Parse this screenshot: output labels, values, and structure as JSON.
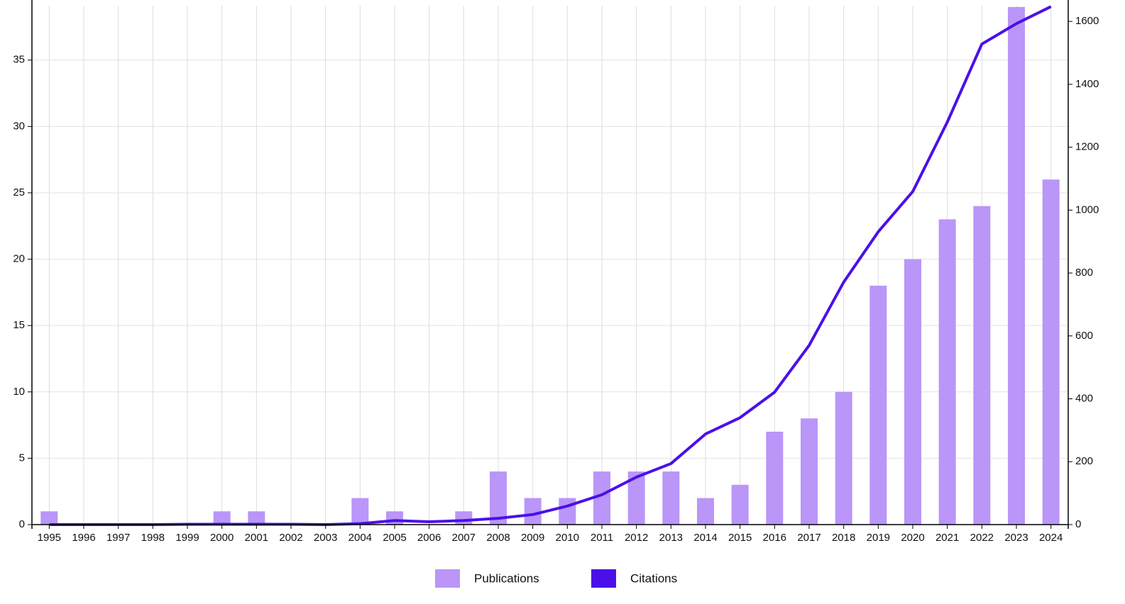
{
  "chart_data": {
    "type": "bar-line",
    "categories": [
      "1995",
      "1996",
      "1997",
      "1998",
      "1999",
      "2000",
      "2001",
      "2002",
      "2003",
      "2004",
      "2005",
      "2006",
      "2007",
      "2008",
      "2009",
      "2010",
      "2011",
      "2012",
      "2013",
      "2014",
      "2015",
      "2016",
      "2017",
      "2018",
      "2019",
      "2020",
      "2021",
      "2022",
      "2023",
      "2024"
    ],
    "series": [
      {
        "name": "Publications",
        "type": "bar",
        "color": "#b996f8",
        "values": [
          1,
          0,
          0,
          0,
          0,
          1,
          1,
          0,
          0,
          2,
          1,
          0,
          1,
          4,
          2,
          2,
          4,
          4,
          4,
          2,
          3,
          7,
          8,
          10,
          18,
          20,
          23,
          24,
          39,
          26
        ]
      },
      {
        "name": "Citations",
        "type": "line",
        "axis": "y2",
        "color": "#4b10e8",
        "values": [
          0,
          0,
          0,
          0,
          1,
          1,
          1,
          1,
          0,
          3,
          13,
          9,
          13,
          20,
          32,
          59,
          95,
          151,
          194,
          288,
          340,
          421,
          570,
          771,
          931,
          1059,
          1280,
          1528,
          1593,
          1647
        ]
      }
    ],
    "ylim": [
      0,
      39.1
    ],
    "yticks": [
      0,
      5,
      10,
      15,
      20,
      25,
      30,
      35
    ],
    "y2lim": [
      0,
      1650
    ],
    "y2ticks": [
      0,
      200,
      400,
      600,
      800,
      1000,
      1200,
      1400,
      1600
    ],
    "grid": true,
    "legend": "bottom"
  }
}
